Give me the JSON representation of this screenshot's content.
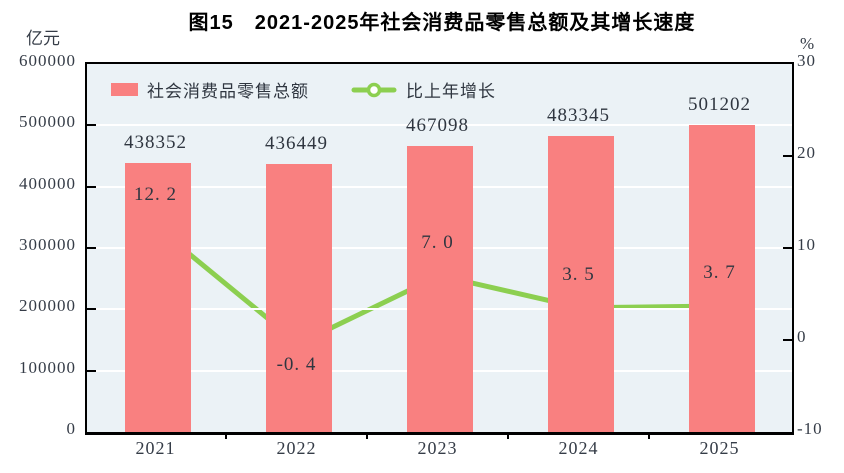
{
  "title": "图15　2021-2025年社会消费品零售总额及其增长速度",
  "axes": {
    "left": {
      "unit": "亿元",
      "tick_labels": [
        "600000",
        "500000",
        "400000",
        "300000",
        "200000",
        "100000",
        "0"
      ]
    },
    "right": {
      "unit": "%",
      "tick_labels": [
        "30",
        "20",
        "10",
        "0",
        "-10"
      ]
    }
  },
  "legend": {
    "bar_label": "社会消费品零售总额",
    "line_label": "比上年增长"
  },
  "colors": {
    "bar": "#f98080",
    "line": "#8ccf50",
    "marker_fill": "#ffffff",
    "plot_background": "#ebf2f6",
    "gridline": "#ffffff",
    "axis": "#000000",
    "text": "#2f3640"
  },
  "chart_data": {
    "type": "bar",
    "subtype": "bar+line-combo",
    "title": "图15　2021-2025年社会消费品零售总额及其增长速度",
    "categories": [
      "2021",
      "2022",
      "2023",
      "2024",
      "2025"
    ],
    "series": [
      {
        "name": "社会消费品零售总额",
        "type": "bar",
        "axis": "left",
        "unit": "亿元",
        "values": [
          438352,
          436449,
          467098,
          483345,
          501202
        ],
        "data_labels": [
          "438352",
          "436449",
          "467098",
          "483345",
          "501202"
        ]
      },
      {
        "name": "比上年增长",
        "type": "line",
        "axis": "right",
        "unit": "%",
        "values": [
          12.2,
          -0.4,
          7.0,
          3.5,
          3.7
        ],
        "data_labels": [
          "12. 2",
          "-0. 4",
          "7. 0",
          "3. 5",
          "3. 7"
        ],
        "label_placement": [
          "above",
          "below",
          "above",
          "above",
          "above"
        ]
      }
    ],
    "left_ylim": [
      0,
      600000
    ],
    "left_tick_step": 100000,
    "right_ylim": [
      -10,
      30
    ],
    "right_tick_step": 10,
    "grid": "horizontal white lines at left-axis ticks",
    "legend_position": "top-left inside plot"
  }
}
